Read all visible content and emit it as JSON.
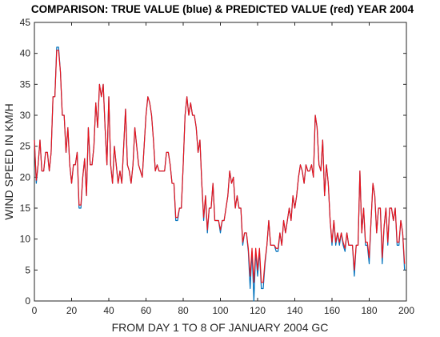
{
  "chart_data": {
    "type": "line",
    "title": "COMPARISON: TRUE VALUE (blue) & PREDICTED VALUE (red) YEAR 2004",
    "x_label": "FROM DAY 1 TO 8 OF JANUARY 2004 GC",
    "y_label": "WIND SPEED IN KM/H",
    "x": [
      0,
      1,
      2,
      3,
      4,
      5,
      6,
      7,
      8,
      9,
      10,
      11,
      12,
      13,
      14,
      15,
      16,
      17,
      18,
      19,
      20,
      21,
      22,
      23,
      24,
      25,
      26,
      27,
      28,
      29,
      30,
      31,
      32,
      33,
      34,
      35,
      36,
      37,
      38,
      39,
      40,
      41,
      42,
      43,
      44,
      45,
      46,
      47,
      48,
      49,
      50,
      51,
      52,
      53,
      54,
      55,
      56,
      57,
      58,
      59,
      60,
      61,
      62,
      63,
      64,
      65,
      66,
      67,
      68,
      69,
      70,
      71,
      72,
      73,
      74,
      75,
      76,
      77,
      78,
      79,
      80,
      81,
      82,
      83,
      84,
      85,
      86,
      87,
      88,
      89,
      90,
      91,
      92,
      93,
      94,
      95,
      96,
      97,
      98,
      99,
      100,
      101,
      102,
      103,
      104,
      105,
      106,
      107,
      108,
      109,
      110,
      111,
      112,
      113,
      114,
      115,
      116,
      117,
      118,
      119,
      120,
      121,
      122,
      123,
      124,
      125,
      126,
      127,
      128,
      129,
      130,
      131,
      132,
      133,
      134,
      135,
      136,
      137,
      138,
      139,
      140,
      141,
      142,
      143,
      144,
      145,
      146,
      147,
      148,
      149,
      150,
      151,
      152,
      153,
      154,
      155,
      156,
      157,
      158,
      159,
      160,
      161,
      162,
      163,
      164,
      165,
      166,
      167,
      168,
      169,
      170,
      171,
      172,
      173,
      174,
      175,
      176,
      177,
      178,
      179,
      180,
      181,
      182,
      183,
      184,
      185,
      186,
      187,
      188,
      189,
      190,
      191,
      192,
      193,
      194,
      195,
      196,
      197,
      198,
      199
    ],
    "series": [
      {
        "name": "TRUE VALUE",
        "color": "#0072bd",
        "values": [
          26,
          19,
          22,
          26,
          21,
          21,
          24,
          24,
          21,
          24,
          33,
          33,
          41,
          41,
          37,
          30,
          30,
          24,
          28,
          22,
          19,
          22,
          22,
          24,
          15,
          15,
          20,
          23,
          17,
          28,
          22,
          22,
          25,
          32,
          28,
          35,
          33,
          35,
          28,
          22,
          33,
          22,
          19,
          25,
          22,
          19,
          21,
          19,
          25,
          31,
          22,
          21,
          19,
          22,
          28,
          25,
          22,
          21,
          20,
          25,
          30,
          33,
          32,
          30,
          26,
          21,
          22,
          21,
          21,
          21,
          21,
          24,
          24,
          22,
          19,
          19,
          13,
          13,
          15,
          15,
          22,
          30,
          33,
          30,
          32,
          30,
          30,
          28,
          24,
          26,
          19,
          13,
          17,
          11,
          15,
          15,
          19,
          13,
          13,
          13,
          11,
          13,
          13,
          15,
          17,
          21,
          19,
          20,
          15,
          17,
          15,
          15,
          9,
          11,
          11,
          8,
          2,
          8,
          0,
          8,
          4,
          8,
          2,
          2,
          6,
          9,
          13,
          9,
          9,
          9,
          8,
          8,
          11,
          9,
          13,
          11,
          13,
          15,
          13,
          17,
          15,
          17,
          20,
          22,
          21,
          19,
          22,
          21,
          21,
          22,
          20,
          30,
          28,
          22,
          21,
          26,
          17,
          22,
          19,
          13,
          9,
          13,
          9,
          11,
          9,
          11,
          9,
          8,
          11,
          9,
          9,
          9,
          4,
          9,
          9,
          21,
          11,
          15,
          9,
          9,
          6,
          13,
          19,
          17,
          11,
          15,
          15,
          6,
          12,
          15,
          9,
          15,
          15,
          13,
          15,
          9,
          9,
          13,
          11,
          5
        ]
      },
      {
        "name": "PREDICTED VALUE",
        "color": "#e8141c",
        "values": [
          26,
          19.5,
          22,
          26,
          21,
          21,
          24,
          24,
          21,
          24,
          33,
          33,
          40.5,
          40.5,
          37,
          30,
          30,
          24,
          28,
          22,
          19,
          22,
          22,
          24,
          15.5,
          15.5,
          20,
          23,
          17,
          28,
          22,
          22,
          25,
          32,
          28,
          35,
          33,
          35,
          28,
          22,
          33,
          22,
          19,
          25,
          22,
          19,
          21,
          19,
          25,
          31,
          22,
          21,
          19,
          22,
          28,
          25,
          22,
          21,
          20,
          25,
          30,
          33,
          32,
          30,
          26,
          21,
          22,
          21,
          21,
          21,
          21,
          24,
          24,
          22,
          19,
          19,
          13.5,
          13.5,
          15,
          15,
          22,
          30,
          33,
          30,
          32,
          30,
          30,
          28,
          24,
          26,
          19,
          13.5,
          17,
          11.5,
          15,
          15,
          19,
          13,
          13,
          13,
          11.5,
          13,
          13,
          15,
          17,
          21,
          19,
          20,
          15,
          17,
          15,
          15,
          9.5,
          11,
          11,
          8.5,
          4,
          8.5,
          3,
          8.5,
          5,
          8.5,
          3,
          3,
          6.5,
          9,
          13,
          9,
          9,
          9,
          8.5,
          8.5,
          11,
          9,
          13,
          11,
          13,
          15,
          13,
          17,
          15,
          17,
          20,
          22,
          21,
          19,
          22,
          21,
          21,
          22,
          20,
          30,
          28,
          22,
          21,
          26,
          17,
          22,
          19,
          13,
          9.5,
          13,
          9.5,
          11,
          9.5,
          11,
          9.5,
          8.5,
          11,
          9,
          9,
          9,
          5,
          9,
          9,
          21,
          11,
          15,
          9.5,
          9.5,
          7,
          13,
          19,
          17,
          11,
          15,
          15,
          7,
          12,
          15,
          9.5,
          15,
          15,
          13,
          15,
          9.5,
          9.5,
          13,
          11,
          6
        ]
      }
    ],
    "xlim": [
      0,
      200
    ],
    "xticks": [
      0,
      20,
      40,
      60,
      80,
      100,
      120,
      140,
      160,
      180,
      200
    ],
    "ylim": [
      0,
      45
    ],
    "yticks": [
      0,
      5,
      10,
      15,
      20,
      25,
      30,
      35,
      40,
      45
    ]
  }
}
